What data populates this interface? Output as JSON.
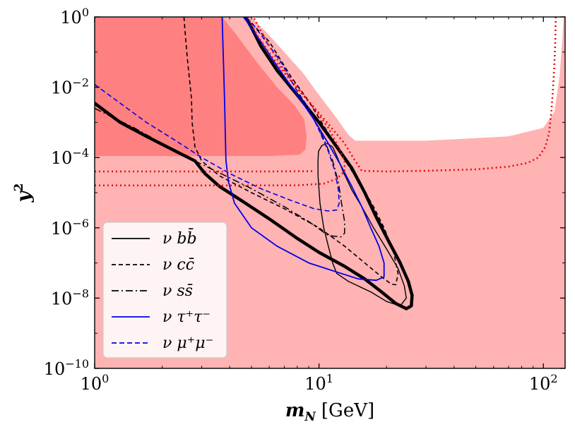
{
  "chart_data": {
    "type": "line",
    "x_scale": "log",
    "y_scale": "log",
    "xlim": [
      1,
      125
    ],
    "ylim": [
      1e-10,
      1
    ],
    "x_ticks": [
      {
        "value": 1,
        "base": "10",
        "exp": "0"
      },
      {
        "value": 10,
        "base": "10",
        "exp": "1"
      },
      {
        "value": 100,
        "base": "10",
        "exp": "2"
      }
    ],
    "y_ticks": [
      {
        "value": 1,
        "base": "10",
        "exp": "0"
      },
      {
        "value": 0.01,
        "base": "10",
        "exp": "−2"
      },
      {
        "value": 0.0001,
        "base": "10",
        "exp": "−4"
      },
      {
        "value": 1e-06,
        "base": "10",
        "exp": "−6"
      },
      {
        "value": 1e-08,
        "base": "10",
        "exp": "−8"
      },
      {
        "value": 1e-10,
        "base": "10",
        "exp": "−10"
      }
    ],
    "xlabel": {
      "symbol": "m",
      "subscript": "N",
      "unit": "[GeV]"
    },
    "ylabel": {
      "symbol": "y",
      "superscript": "2"
    },
    "excluded_regions": [
      {
        "name": "excluded-region-light",
        "color": "#ffb3b3",
        "points": [
          [
            1.0,
            1.0
          ],
          [
            5.0,
            1.0
          ],
          [
            6.0,
            0.3
          ],
          [
            7.0,
            0.1
          ],
          [
            8.5,
            0.025
          ],
          [
            10.0,
            0.006
          ],
          [
            12.0,
            0.0013
          ],
          [
            13.5,
            0.00045
          ],
          [
            14.5,
            0.0003
          ],
          [
            30.0,
            0.0003
          ],
          [
            70.0,
            0.0004
          ],
          [
            100.0,
            0.0007
          ],
          [
            112.0,
            0.002
          ],
          [
            118.0,
            0.02
          ],
          [
            121.0,
            0.15
          ],
          [
            123.0,
            1.0
          ],
          [
            125.0,
            1.0
          ],
          [
            125.0,
            1e-10
          ],
          [
            1.0,
            1e-10
          ]
        ]
      },
      {
        "name": "excluded-region-dark",
        "color": "#ff8080",
        "points": [
          [
            1.0,
            1.0
          ],
          [
            3.7,
            1.0
          ],
          [
            4.3,
            0.3
          ],
          [
            5.3,
            0.05
          ],
          [
            6.5,
            0.01
          ],
          [
            7.8,
            0.003
          ],
          [
            8.6,
            0.0012
          ],
          [
            8.8,
            0.0004
          ],
          [
            8.7,
            0.00017
          ],
          [
            8.2,
            0.00012
          ],
          [
            6.0,
            0.00011
          ],
          [
            1.0,
            0.00011
          ]
        ]
      }
    ],
    "series": [
      {
        "name": "ν b b̄",
        "color": "#000000",
        "dash": "solid",
        "width": 1.4,
        "closed": true,
        "points": [
          [
            9.95,
            0.00015
          ],
          [
            10.3,
            0.00022
          ],
          [
            10.9,
            0.00025
          ],
          [
            11.5,
            0.0002
          ],
          [
            12.0,
            0.00011
          ],
          [
            12.8,
            4e-05
          ],
          [
            14.0,
            1.2e-05
          ],
          [
            15.5,
            4e-06
          ],
          [
            17.5,
            1e-06
          ],
          [
            20.0,
            2.5e-07
          ],
          [
            22.5,
            7e-08
          ],
          [
            24.0,
            2.2e-08
          ],
          [
            24.5,
            1e-08
          ],
          [
            23.0,
            6e-09
          ],
          [
            20.0,
            8e-09
          ],
          [
            17.0,
            1.5e-08
          ],
          [
            13.5,
            3e-08
          ],
          [
            12.0,
            5e-08
          ],
          [
            11.5,
            1e-07
          ],
          [
            11.0,
            3e-07
          ],
          [
            10.5,
            1e-06
          ],
          [
            10.1,
            5e-06
          ],
          [
            9.9,
            3e-05
          ],
          [
            9.9,
            8e-05
          ]
        ]
      },
      {
        "name": "ν b b̄ (outer)",
        "color": "#000000",
        "dash": "solid",
        "width": 4.5,
        "closed": false,
        "points": [
          [
            1.0,
            0.0035
          ],
          [
            1.3,
            0.001
          ],
          [
            1.7,
            0.0004
          ],
          [
            2.3,
            0.00015
          ],
          [
            2.8,
            8e-05
          ],
          [
            3.1,
            3.5e-05
          ],
          [
            3.6,
            1.5e-05
          ],
          [
            4.5,
            6e-06
          ],
          [
            6.0,
            1.8e-06
          ],
          [
            8.0,
            5e-07
          ],
          [
            10.0,
            2e-07
          ],
          [
            13.0,
            8e-08
          ],
          [
            16.0,
            3.5e-08
          ],
          [
            19.0,
            1.5e-08
          ],
          [
            22.0,
            7e-09
          ],
          [
            24.5,
            5e-09
          ],
          [
            25.8,
            6e-09
          ],
          [
            26.0,
            1.2e-08
          ],
          [
            25.0,
            3e-08
          ],
          [
            23.0,
            1e-07
          ],
          [
            20.5,
            4e-07
          ],
          [
            18.0,
            2e-06
          ],
          [
            16.0,
            1e-05
          ],
          [
            14.0,
            5e-05
          ],
          [
            12.0,
            0.0002
          ],
          [
            10.0,
            0.001
          ],
          [
            8.0,
            0.006
          ],
          [
            6.5,
            0.03
          ],
          [
            5.5,
            0.15
          ],
          [
            5.0,
            0.5
          ],
          [
            4.7,
            1.0
          ]
        ]
      },
      {
        "name": "ν c c̄",
        "color": "#000000",
        "dash": "6,4",
        "width": 1.6,
        "closed": false,
        "points": [
          [
            2.5,
            1.0
          ],
          [
            2.55,
            0.2
          ],
          [
            2.6,
            0.05
          ],
          [
            2.7,
            0.005
          ],
          [
            2.72,
            0.001
          ],
          [
            2.8,
            0.0002
          ],
          [
            3.0,
            8e-05
          ],
          [
            3.6,
            3e-05
          ],
          [
            5.0,
            1e-05
          ],
          [
            7.0,
            3.5e-06
          ],
          [
            10.0,
            1e-06
          ],
          [
            13.0,
            3e-07
          ],
          [
            16.0,
            1e-07
          ],
          [
            19.0,
            4e-08
          ],
          [
            21.0,
            2.5e-08
          ],
          [
            22.0,
            2.4e-08
          ],
          [
            22.5,
            5e-08
          ],
          [
            21.5,
            2e-07
          ],
          [
            19.5,
            1e-06
          ],
          [
            17.5,
            4e-06
          ],
          [
            15.5,
            1.5e-05
          ],
          [
            13.5,
            6e-05
          ],
          [
            12.0,
            0.0002
          ],
          [
            10.5,
            0.0008
          ],
          [
            9.0,
            0.004
          ],
          [
            7.5,
            0.02
          ],
          [
            6.0,
            0.2
          ],
          [
            4.7,
            1.0
          ]
        ]
      },
      {
        "name": "ν s s̄",
        "color": "#000000",
        "dash": "10,4,2,4",
        "width": 1.5,
        "closed": false,
        "points": [
          [
            1.0,
            0.0025
          ],
          [
            1.5,
            0.0007
          ],
          [
            2.0,
            0.00025
          ],
          [
            2.6,
            0.0001
          ],
          [
            3.5,
            4e-05
          ],
          [
            5.0,
            1.3e-05
          ],
          [
            7.0,
            4e-06
          ],
          [
            9.0,
            1.5e-06
          ],
          [
            11.0,
            6e-07
          ],
          [
            12.5,
            5.5e-07
          ],
          [
            13.0,
            7e-07
          ],
          [
            13.0,
            1.5e-06
          ],
          [
            12.6,
            5e-06
          ],
          [
            12.2,
            2e-05
          ],
          [
            11.5,
            8e-05
          ],
          [
            10.6,
            0.0003
          ],
          [
            9.5,
            0.0012
          ],
          [
            8.0,
            0.006
          ],
          [
            6.5,
            0.03
          ],
          [
            5.5,
            0.15
          ],
          [
            4.9,
            0.6
          ],
          [
            4.7,
            1.0
          ]
        ]
      },
      {
        "name": "ν τ⁺ τ⁻",
        "color": "#0000ee",
        "dash": "solid",
        "width": 1.8,
        "closed": false,
        "points": [
          [
            3.7,
            1.0
          ],
          [
            3.72,
            0.3
          ],
          [
            3.76,
            0.03
          ],
          [
            3.8,
            0.003
          ],
          [
            3.82,
            0.0005
          ],
          [
            3.85,
            8e-05
          ],
          [
            3.95,
            2e-05
          ],
          [
            4.2,
            5e-06
          ],
          [
            5.0,
            1e-06
          ],
          [
            6.5,
            3e-07
          ],
          [
            9.0,
            1e-07
          ],
          [
            12.0,
            5.5e-08
          ],
          [
            15.0,
            3.5e-08
          ],
          [
            18.0,
            3.2e-08
          ],
          [
            19.5,
            4e-08
          ],
          [
            19.5,
            1e-07
          ],
          [
            18.5,
            3e-07
          ],
          [
            17.0,
            1e-06
          ],
          [
            15.5,
            4e-06
          ],
          [
            14.0,
            1.5e-05
          ],
          [
            12.5,
            6e-05
          ],
          [
            11.0,
            0.00025
          ],
          [
            9.5,
            0.0012
          ],
          [
            8.0,
            0.006
          ],
          [
            6.5,
            0.04
          ],
          [
            5.5,
            0.2
          ],
          [
            4.8,
            0.7
          ],
          [
            4.6,
            1.0
          ]
        ]
      },
      {
        "name": "ν μ⁺ μ⁻",
        "color": "#0000ee",
        "dash": "7,4",
        "width": 1.6,
        "closed": false,
        "points": [
          [
            1.0,
            0.012
          ],
          [
            1.3,
            0.0035
          ],
          [
            1.7,
            0.001
          ],
          [
            2.3,
            0.0003
          ],
          [
            3.0,
            0.0001
          ],
          [
            4.0,
            3.5e-05
          ],
          [
            5.5,
            1.3e-05
          ],
          [
            7.5,
            6e-06
          ],
          [
            9.5,
            3.5e-06
          ],
          [
            11.0,
            3e-06
          ],
          [
            12.0,
            3.2e-06
          ],
          [
            12.3,
            5e-06
          ],
          [
            12.2,
            1.2e-05
          ],
          [
            11.8,
            4e-05
          ],
          [
            11.0,
            0.00015
          ],
          [
            10.0,
            0.0006
          ],
          [
            9.0,
            0.0025
          ],
          [
            7.8,
            0.01
          ],
          [
            6.8,
            0.05
          ],
          [
            5.8,
            0.2
          ],
          [
            5.0,
            0.7
          ],
          [
            4.7,
            1.0
          ]
        ]
      },
      {
        "name": "upper-dotted-limit",
        "color": "#ee0000",
        "dash": "2,4",
        "width": 2.5,
        "closed": false,
        "points": [
          [
            4.8,
            1.0
          ],
          [
            5.3,
            0.3
          ],
          [
            6.2,
            0.07
          ],
          [
            7.5,
            0.015
          ],
          [
            9.0,
            0.004
          ],
          [
            11.0,
            0.0009
          ],
          [
            13.0,
            0.00025
          ],
          [
            14.5,
            8e-05
          ],
          [
            15.5,
            4.2e-05
          ],
          [
            20.0,
            4e-05
          ],
          [
            30.0,
            4.2e-05
          ],
          [
            50.0,
            4.6e-05
          ],
          [
            70.0,
            5.5e-05
          ],
          [
            85.0,
            7e-05
          ],
          [
            95.0,
            0.0001
          ],
          [
            102.0,
            0.0002
          ],
          [
            106.0,
            0.0005
          ],
          [
            108.5,
            0.002
          ],
          [
            110.5,
            0.01
          ],
          [
            112.0,
            0.05
          ],
          [
            113.0,
            0.2
          ],
          [
            113.5,
            1.0
          ]
        ]
      },
      {
        "name": "lower-dotted-limit",
        "color": "#ee0000",
        "dash": "2,4",
        "width": 2.5,
        "closed": false,
        "points": [
          [
            1.0,
            1.6e-05
          ],
          [
            5.0,
            1.6e-05
          ],
          [
            8.0,
            1.62e-05
          ],
          [
            10.5,
            1.8e-05
          ],
          [
            12.0,
            2.5e-05
          ],
          [
            13.0,
            4e-05
          ],
          [
            13.0,
            8e-05
          ],
          [
            12.2,
            0.0002
          ],
          [
            11.0,
            0.0007
          ],
          [
            9.5,
            0.0025
          ],
          [
            8.0,
            0.01
          ],
          [
            6.8,
            0.04
          ],
          [
            6.0,
            0.15
          ],
          [
            5.4,
            0.5
          ],
          [
            5.1,
            1.0
          ]
        ]
      },
      {
        "name": "left-dotted-branch",
        "color": "#ee0000",
        "dash": "2,4",
        "width": 2.5,
        "closed": false,
        "points": [
          [
            1.0,
            4e-05
          ],
          [
            3.0,
            4e-05
          ],
          [
            6.0,
            4e-05
          ],
          [
            9.5,
            4.1e-05
          ]
        ]
      }
    ],
    "legend": {
      "location": "lower-left",
      "entries": [
        {
          "label": "ν bb̄",
          "color": "#000000",
          "dash": "solid"
        },
        {
          "label": "ν cc̄",
          "color": "#000000",
          "dash": "6,4"
        },
        {
          "label": "ν ss̄",
          "color": "#000000",
          "dash": "10,4,2,4"
        },
        {
          "label": "ν τ⁺τ⁻",
          "color": "#0000ee",
          "dash": "solid"
        },
        {
          "label": "ν μ⁺μ⁻",
          "color": "#0000ee",
          "dash": "7,4"
        }
      ]
    }
  }
}
